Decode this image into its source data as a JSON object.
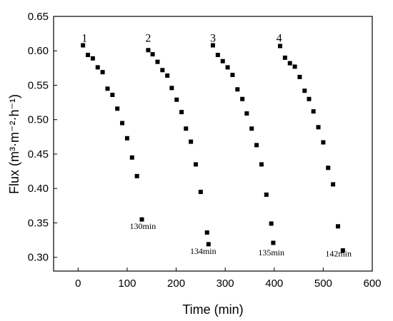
{
  "chart_data": {
    "type": "scatter",
    "xlabel": "Time (min)",
    "ylabel": "Flux (m³·m⁻²·h⁻¹)",
    "xlim": [
      -50,
      600
    ],
    "ylim": [
      0.28,
      0.65
    ],
    "xticks": [
      0,
      100,
      200,
      300,
      400,
      500,
      600
    ],
    "yticks": [
      0.3,
      0.35,
      0.4,
      0.45,
      0.5,
      0.55,
      0.6,
      0.65
    ],
    "grid": false,
    "marker": "square",
    "marker_color": "#000000",
    "series": [
      {
        "x": [
          10,
          20,
          30,
          40,
          50,
          60,
          70,
          80,
          90,
          100,
          110,
          120,
          130
        ],
        "y": [
          0.608,
          0.594,
          0.589,
          0.576,
          0.569,
          0.545,
          0.536,
          0.516,
          0.495,
          0.473,
          0.445,
          0.418,
          0.355
        ]
      },
      {
        "x": [
          143,
          152,
          162,
          172,
          182,
          191,
          201,
          211,
          220,
          230,
          240,
          250,
          263,
          266
        ],
        "y": [
          0.601,
          0.595,
          0.584,
          0.572,
          0.564,
          0.546,
          0.529,
          0.511,
          0.487,
          0.468,
          0.435,
          0.395,
          0.336,
          0.319
        ]
      },
      {
        "x": [
          275,
          285,
          295,
          305,
          315,
          325,
          335,
          344,
          354,
          364,
          374,
          384,
          394,
          398
        ],
        "y": [
          0.608,
          0.594,
          0.585,
          0.576,
          0.565,
          0.544,
          0.53,
          0.509,
          0.487,
          0.463,
          0.435,
          0.391,
          0.349,
          0.321
        ]
      },
      {
        "x": [
          412,
          422,
          432,
          442,
          452,
          462,
          471,
          480,
          490,
          500,
          510,
          520,
          530,
          540
        ],
        "y": [
          0.607,
          0.59,
          0.582,
          0.577,
          0.562,
          0.542,
          0.53,
          0.512,
          0.489,
          0.467,
          0.43,
          0.406,
          0.345,
          0.31
        ]
      }
    ],
    "cycle_labels": [
      {
        "text": "1",
        "x": 13,
        "y": 0.613
      },
      {
        "text": "2",
        "x": 143,
        "y": 0.613
      },
      {
        "text": "3",
        "x": 275,
        "y": 0.613
      },
      {
        "text": "4",
        "x": 410,
        "y": 0.613
      }
    ],
    "annotations": [
      {
        "text": "130min",
        "x": 132,
        "y": 0.341
      },
      {
        "text": "134min",
        "x": 255,
        "y": 0.305
      },
      {
        "text": "135min",
        "x": 394,
        "y": 0.303
      },
      {
        "text": "142min",
        "x": 531,
        "y": 0.301
      }
    ]
  }
}
